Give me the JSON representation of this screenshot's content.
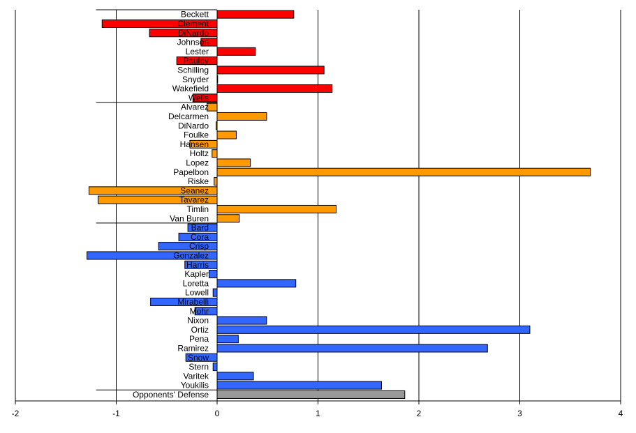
{
  "chart_data": {
    "type": "bar",
    "orientation": "horizontal",
    "title": "",
    "xlabel": "",
    "ylabel": "",
    "xlim": [
      -2,
      4
    ],
    "xticks": [
      -2,
      -1,
      0,
      1,
      2,
      3,
      4
    ],
    "grid": "vertical",
    "legend": "none",
    "groups": [
      {
        "color": "#ff0000",
        "items": [
          {
            "label": "Beckett",
            "value": 0.76
          },
          {
            "label": "Clement",
            "value": -1.14
          },
          {
            "label": "DiNardo",
            "value": -0.67
          },
          {
            "label": "Johnson",
            "value": -0.16
          },
          {
            "label": "Lester",
            "value": 0.38
          },
          {
            "label": "Pauley",
            "value": -0.4
          },
          {
            "label": "Schilling",
            "value": 1.06
          },
          {
            "label": "Snyder",
            "value": 0.0
          },
          {
            "label": "Wakefield",
            "value": 1.14
          },
          {
            "label": "Wells",
            "value": -0.24
          }
        ]
      },
      {
        "color": "#ff9900",
        "items": [
          {
            "label": "Alvarez",
            "value": -0.1
          },
          {
            "label": "Delcarmen",
            "value": 0.49
          },
          {
            "label": "DiNardo",
            "value": -0.01
          },
          {
            "label": "Foulke",
            "value": 0.19
          },
          {
            "label": "Hansen",
            "value": -0.27
          },
          {
            "label": "Holtz",
            "value": -0.05
          },
          {
            "label": "Lopez",
            "value": 0.33
          },
          {
            "label": "Papelbon",
            "value": 3.7
          },
          {
            "label": "Riske",
            "value": -0.03
          },
          {
            "label": "Seanez",
            "value": -1.27
          },
          {
            "label": "Tavarez",
            "value": -1.18
          },
          {
            "label": "Timlin",
            "value": 1.18
          },
          {
            "label": "Van Buren",
            "value": 0.22
          }
        ]
      },
      {
        "color": "#3366ff",
        "items": [
          {
            "label": "Bard",
            "value": -0.29
          },
          {
            "label": "Cora",
            "value": -0.38
          },
          {
            "label": "Crisp",
            "value": -0.58
          },
          {
            "label": "Gonzalez",
            "value": -1.29
          },
          {
            "label": "Harris",
            "value": -0.32
          },
          {
            "label": "Kapler",
            "value": -0.08
          },
          {
            "label": "Loretta",
            "value": 0.78
          },
          {
            "label": "Lowell",
            "value": -0.04
          },
          {
            "label": "Mirabelli",
            "value": -0.66
          },
          {
            "label": "Mohr",
            "value": -0.22
          },
          {
            "label": "Nixon",
            "value": 0.49
          },
          {
            "label": "Ortiz",
            "value": 3.1
          },
          {
            "label": "Pena",
            "value": 0.21
          },
          {
            "label": "Ramirez",
            "value": 2.68
          },
          {
            "label": "Snow",
            "value": -0.31
          },
          {
            "label": "Stern",
            "value": -0.04
          },
          {
            "label": "Varitek",
            "value": 0.36
          },
          {
            "label": "Youkilis",
            "value": 1.63
          }
        ]
      },
      {
        "color": "#999999",
        "items": [
          {
            "label": "Opponents' Defense",
            "value": 1.86
          }
        ]
      }
    ]
  }
}
